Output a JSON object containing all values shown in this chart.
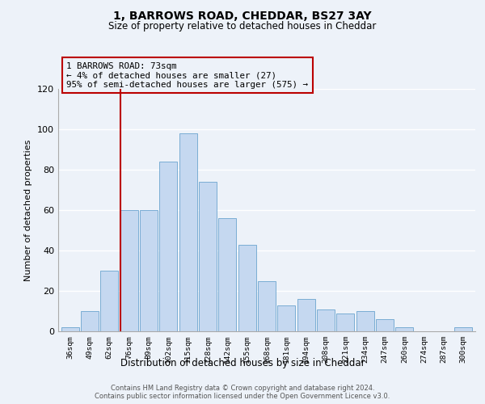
{
  "title": "1, BARROWS ROAD, CHEDDAR, BS27 3AY",
  "subtitle": "Size of property relative to detached houses in Cheddar",
  "xlabel": "Distribution of detached houses by size in Cheddar",
  "ylabel": "Number of detached properties",
  "bar_labels": [
    "36sqm",
    "49sqm",
    "62sqm",
    "76sqm",
    "89sqm",
    "102sqm",
    "115sqm",
    "128sqm",
    "142sqm",
    "155sqm",
    "168sqm",
    "181sqm",
    "194sqm",
    "208sqm",
    "221sqm",
    "234sqm",
    "247sqm",
    "260sqm",
    "274sqm",
    "287sqm",
    "300sqm"
  ],
  "bar_values": [
    2,
    10,
    30,
    60,
    60,
    84,
    98,
    74,
    56,
    43,
    25,
    13,
    16,
    11,
    9,
    10,
    6,
    2,
    0,
    0,
    2
  ],
  "bar_color": "#c5d8f0",
  "bar_edge_color": "#7aadd4",
  "vline_x_index": 3,
  "marker_label": "1 BARROWS ROAD: 73sqm",
  "annotation_line1": "← 4% of detached houses are smaller (27)",
  "annotation_line2": "95% of semi-detached houses are larger (575) →",
  "vline_color": "#bb0000",
  "annotation_box_edge": "#bb0000",
  "ylim": [
    0,
    120
  ],
  "yticks": [
    0,
    20,
    40,
    60,
    80,
    100,
    120
  ],
  "background_color": "#edf2f9",
  "grid_color": "#ffffff",
  "footer_line1": "Contains HM Land Registry data © Crown copyright and database right 2024.",
  "footer_line2": "Contains public sector information licensed under the Open Government Licence v3.0."
}
